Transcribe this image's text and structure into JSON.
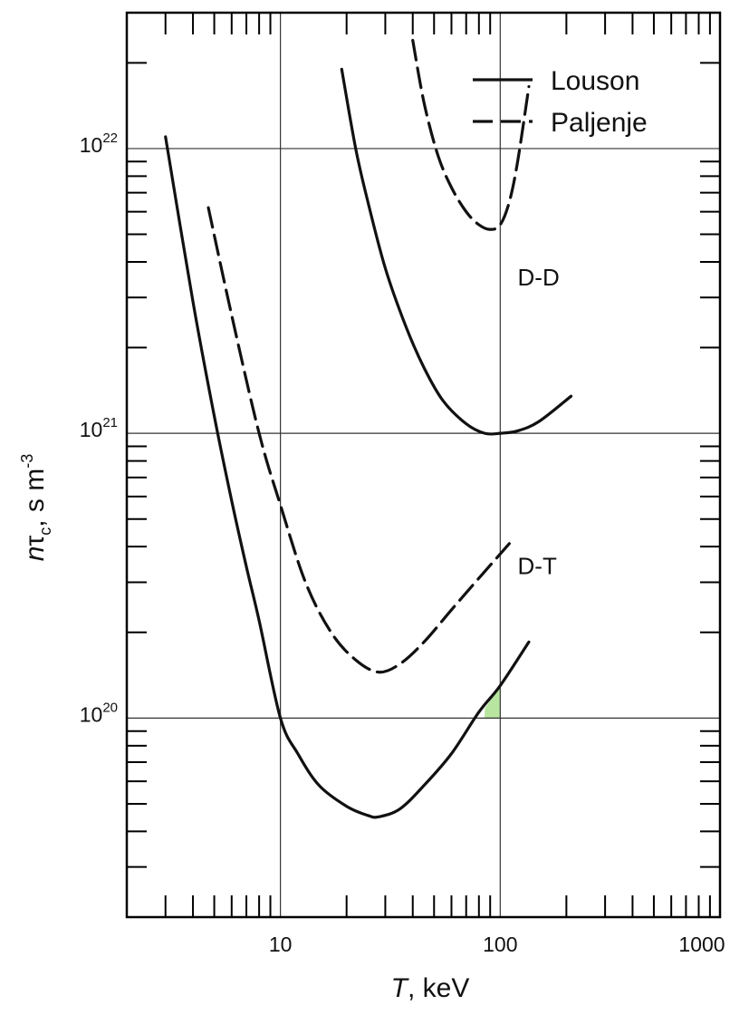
{
  "chart_data": {
    "type": "line",
    "x_scale": "log",
    "y_scale": "log",
    "xlim": [
      2,
      1000
    ],
    "ylim": [
      2e+19,
      3e+22
    ],
    "grid": true,
    "legend_position": "top-right",
    "xlabel_var": "T",
    "xlabel_unit": ", keV",
    "ylabel_n": "n",
    "ylabel_tau": "τ",
    "ylabel_sub": "c",
    "ylabel_unit": ", s m",
    "ylabel_exp": "-3",
    "x_tick_labels": [
      {
        "value": 10,
        "label": "10"
      },
      {
        "value": 100,
        "label": "100"
      },
      {
        "value": 1000,
        "label": "1000"
      }
    ],
    "y_tick_labels": [
      {
        "value": 1e+20,
        "base": "10",
        "exp": "20"
      },
      {
        "value": 1e+21,
        "base": "10",
        "exp": "21"
      },
      {
        "value": 1e+22,
        "base": "10",
        "exp": "22"
      }
    ],
    "legend": [
      {
        "label": "Louson",
        "style": "solid"
      },
      {
        "label": "Paljenje",
        "style": "dashed"
      }
    ],
    "region_labels": [
      {
        "text": "D-D",
        "x": 120,
        "y": 3.3e+21
      },
      {
        "text": "D-T",
        "x": 120,
        "y": 3.2e+20
      }
    ],
    "series": [
      {
        "group": "D-T",
        "style": "solid",
        "x": [
          3,
          4,
          5,
          6,
          7,
          8,
          10,
          12,
          15,
          20,
          25,
          28,
          35,
          45,
          60,
          80,
          100,
          135
        ],
        "y": [
          1.1e+22,
          2.9e+21,
          1.15e+21,
          5.8e+20,
          3.4e+20,
          2.2e+20,
          1e+20,
          7.5e+19,
          5.8e+19,
          4.9e+19,
          4.55e+19,
          4.5e+19,
          4.8e+19,
          5.8e+19,
          7.5e+19,
          1.05e+20,
          1.3e+20,
          1.85e+20
        ]
      },
      {
        "group": "D-T",
        "style": "dashed",
        "x": [
          4.7,
          6,
          8,
          10,
          13,
          17,
          22,
          28,
          35,
          45,
          60,
          80,
          110
        ],
        "y": [
          6.2e+21,
          2.6e+21,
          1e+21,
          5.6e+20,
          3e+20,
          2e+20,
          1.6e+20,
          1.45e+20,
          1.55e+20,
          1.85e+20,
          2.4e+20,
          3.1e+20,
          4.1e+20
        ]
      },
      {
        "group": "D-D",
        "style": "solid",
        "x": [
          19,
          22,
          25,
          30,
          37,
          45,
          55,
          70,
          85,
          100,
          120,
          150,
          210
        ],
        "y": [
          1.9e+22,
          1e+22,
          6.5e+21,
          3.8e+21,
          2.4e+21,
          1.7e+21,
          1.3e+21,
          1.08e+21,
          1e+21,
          1e+21,
          1.02e+21,
          1.1e+21,
          1.35e+21
        ]
      },
      {
        "group": "D-D",
        "style": "dashed",
        "x": [
          40,
          45,
          52,
          60,
          70,
          80,
          90,
          100,
          110,
          120,
          135
        ],
        "y": [
          2.4e+22,
          1.45e+22,
          9.5e+21,
          7.3e+21,
          6e+21,
          5.4e+21,
          5.2e+21,
          5.4e+21,
          6.5e+21,
          9e+21,
          1.65e+22
        ]
      }
    ],
    "highlight": {
      "color": "#b8e6a0",
      "x": [
        85,
        100
      ],
      "y_top": [
        1.08e+20,
        1.3e+20
      ],
      "y_bottom": 1e+20
    }
  }
}
